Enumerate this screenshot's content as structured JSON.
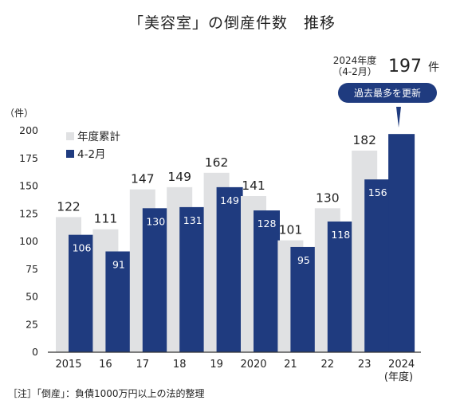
{
  "chart_data": {
    "type": "bar",
    "title": "「美容室」の倒産件数　推移",
    "ylabel": "（件）",
    "xlabel_unit": "(年度)",
    "ylim": [
      0,
      200
    ],
    "yticks": [
      0,
      25,
      50,
      75,
      100,
      125,
      150,
      175,
      200
    ],
    "categories": [
      "2015",
      "16",
      "17",
      "18",
      "19",
      "2020",
      "21",
      "22",
      "23",
      "2024"
    ],
    "series": [
      {
        "name": "年度累計",
        "color": "#e0e1e3",
        "values": [
          122,
          111,
          147,
          149,
          162,
          141,
          101,
          130,
          182,
          null
        ]
      },
      {
        "name": "4-2月",
        "color": "#1f3b7f",
        "values": [
          106,
          91,
          130,
          131,
          149,
          128,
          95,
          118,
          156,
          197
        ]
      }
    ],
    "highlight": {
      "period_line1": "2024年度",
      "period_line2": "（4-2月）",
      "value": "197",
      "unit": "件",
      "badge": "過去最多を更新"
    },
    "legend_position": "top-left",
    "grid": false
  },
  "footnote": "［注］「倒産」：負債1000万円以上の法的整理"
}
